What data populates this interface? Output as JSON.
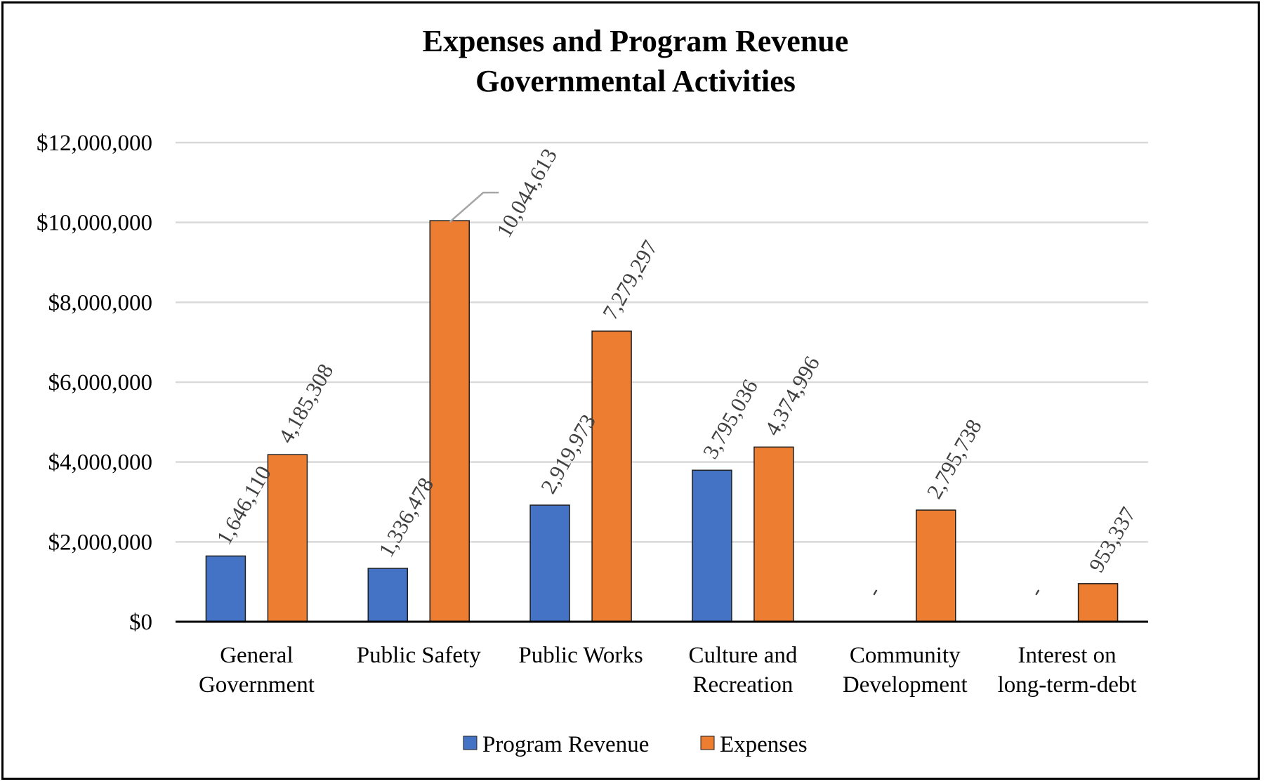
{
  "chart_data": {
    "type": "bar",
    "title": "Expenses and Program Revenue",
    "subtitle": "Governmental Activities",
    "categories": [
      [
        "General",
        "Government"
      ],
      [
        "Public Safety"
      ],
      [
        "Public Works"
      ],
      [
        "Culture and",
        "Recreation"
      ],
      [
        "Community",
        "Development"
      ],
      [
        "Interest on",
        "long-term-debt"
      ]
    ],
    "series": [
      {
        "name": "Program Revenue",
        "color": "#4472C4",
        "values": [
          1646110,
          1336478,
          2919973,
          3795036,
          0,
          0
        ],
        "labels": [
          "1,646,110",
          "1,336,478",
          "2,919,973",
          "3,795,036",
          "-",
          "-"
        ]
      },
      {
        "name": "Expenses",
        "color": "#ED7D31",
        "values": [
          4185308,
          10044613,
          7279297,
          4374996,
          2795738,
          953337
        ],
        "labels": [
          "4,185,308",
          "10,044,613",
          "7,279,297",
          "4,374,996",
          "2,795,738",
          "953,337"
        ]
      }
    ],
    "ylim": [
      0,
      12000000
    ],
    "yticks": [
      0,
      2000000,
      4000000,
      6000000,
      8000000,
      10000000,
      12000000
    ],
    "ytick_labels": [
      "$0",
      "$2,000,000",
      "$4,000,000",
      "$6,000,000",
      "$8,000,000",
      "$10,000,000",
      "$12,000,000"
    ],
    "xlabel": "",
    "ylabel": "",
    "grid": true,
    "legend_position": "bottom"
  }
}
